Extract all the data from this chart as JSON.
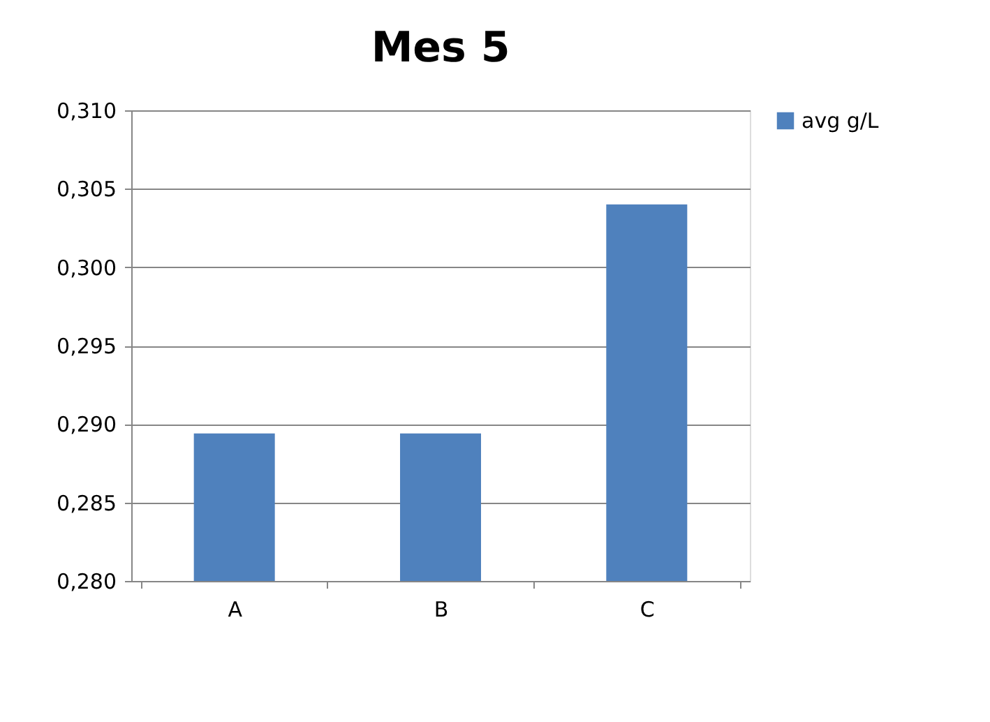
{
  "chart_data": {
    "type": "bar",
    "title": "Mes 5",
    "categories": [
      "A",
      "B",
      "C"
    ],
    "series": [
      {
        "name": "avg g/L",
        "color": "#4f81bd",
        "values": [
          0.2894,
          0.2894,
          0.304
        ]
      }
    ],
    "ylim": [
      0.28,
      0.31
    ],
    "yticks": [
      {
        "value": 0.28,
        "label": "0,280"
      },
      {
        "value": 0.285,
        "label": "0,285"
      },
      {
        "value": 0.29,
        "label": "0,290"
      },
      {
        "value": 0.295,
        "label": "0,295"
      },
      {
        "value": 0.3,
        "label": "0,300"
      },
      {
        "value": 0.305,
        "label": "0,305"
      },
      {
        "value": 0.31,
        "label": "0,310"
      }
    ],
    "grid": "y",
    "legend": "right"
  }
}
